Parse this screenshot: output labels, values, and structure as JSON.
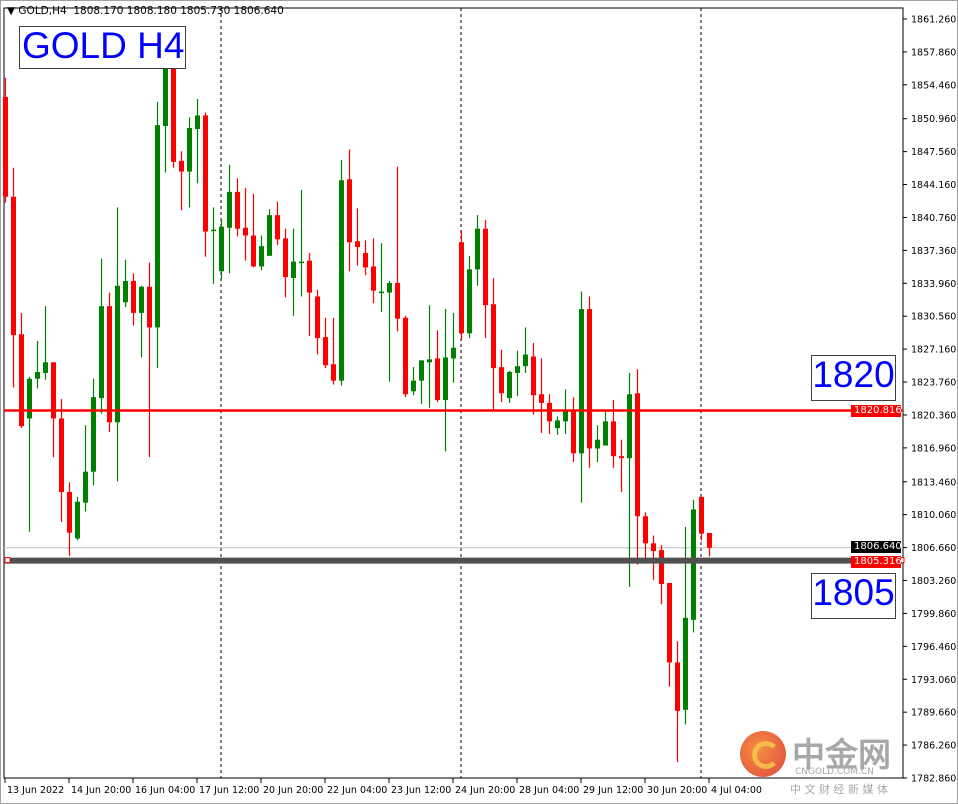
{
  "header": {
    "menu_icon": "triangle-down-icon",
    "symbol": "GOLD,H4",
    "ohlc": "1808.170 1808.180 1805.730 1806.640"
  },
  "title_label": "GOLD H4",
  "levels": {
    "upper": {
      "label": "1820",
      "price": 1820.816,
      "price_tag": "1820.816",
      "color": "#ff0000"
    },
    "lower": {
      "label": "1805",
      "price": 1805.316,
      "price_tag": "1805.316",
      "color": "#505050",
      "tag_color": "#ff0000"
    },
    "bid": {
      "price": 1806.64,
      "price_tag": "1806.640",
      "color": "#c0c0c0"
    }
  },
  "watermark": {
    "name": "中金网",
    "domain": "CNGOLD.COM.CN",
    "slogan": "中 文 财 经 新 媒 体"
  },
  "chart_data": {
    "type": "candlestick",
    "symbol": "GOLD",
    "timeframe": "H4",
    "up_color": "#008000",
    "down_color": "#ff0000",
    "ylim": [
      1782.86,
      1861.26
    ],
    "y_ticks": [
      "1861.260",
      "1857.860",
      "1854.460",
      "1850.960",
      "1847.560",
      "1844.160",
      "1840.760",
      "1837.360",
      "1833.960",
      "1830.560",
      "1827.160",
      "1823.760",
      "1820.360",
      "1816.960",
      "1813.460",
      "1810.060",
      "1806.660",
      "1803.260",
      "1799.860",
      "1796.460",
      "1793.060",
      "1789.660",
      "1786.260",
      "1782.860"
    ],
    "x_ticks": [
      "13 Jun 2022",
      "14 Jun 20:00",
      "16 Jun 04:00",
      "17 Jun 12:00",
      "20 Jun 20:00",
      "22 Jun 04:00",
      "23 Jun 12:00",
      "24 Jun 20:00",
      "28 Jun 04:00",
      "29 Jun 12:00",
      "30 Jun 20:00",
      "4 Jul 04:00"
    ],
    "period_separators": [
      "17 Jun",
      "24 Jun",
      "1 Jul"
    ],
    "ohlc": [
      [
        1853.2,
        1855.2,
        1842.3,
        1842.9
      ],
      [
        1842.9,
        1845.9,
        1823.2,
        1828.6
      ],
      [
        1828.7,
        1830.9,
        1819.0,
        1819.2
      ],
      [
        1820.0,
        1824.3,
        1808.3,
        1824.1
      ],
      [
        1824.1,
        1828.0,
        1823.1,
        1824.8
      ],
      [
        1824.7,
        1831.6,
        1824.0,
        1825.8
      ],
      [
        1825.8,
        1825.8,
        1816.0,
        1820.0
      ],
      [
        1820.0,
        1822.0,
        1809.3,
        1812.4
      ],
      [
        1812.4,
        1813.4,
        1805.8,
        1808.2
      ],
      [
        1807.6,
        1811.9,
        1807.4,
        1811.4
      ],
      [
        1811.3,
        1819.3,
        1810.4,
        1814.5
      ],
      [
        1814.5,
        1824.1,
        1813.1,
        1822.2
      ],
      [
        1822.1,
        1836.5,
        1820.5,
        1831.6
      ],
      [
        1831.6,
        1833.0,
        1818.6,
        1819.6
      ],
      [
        1819.6,
        1841.8,
        1813.5,
        1833.7
      ],
      [
        1832.0,
        1836.4,
        1831.5,
        1834.2
      ],
      [
        1834.2,
        1835.0,
        1829.6,
        1830.9
      ],
      [
        1830.9,
        1833.7,
        1826.3,
        1833.6
      ],
      [
        1833.6,
        1836.1,
        1816.0,
        1829.4
      ],
      [
        1829.4,
        1852.7,
        1825.2,
        1850.3
      ],
      [
        1850.2,
        1857.5,
        1845.4,
        1856.6
      ],
      [
        1856.4,
        1857.1,
        1845.9,
        1846.5
      ],
      [
        1846.6,
        1847.6,
        1841.5,
        1845.5
      ],
      [
        1845.5,
        1851.1,
        1841.8,
        1850.0
      ],
      [
        1849.9,
        1853.0,
        1844.3,
        1851.3
      ],
      [
        1851.3,
        1851.6,
        1836.7,
        1839.3
      ],
      [
        1839.5,
        1841.8,
        1833.9,
        1839.5
      ],
      [
        1835.2,
        1840.5,
        1834.4,
        1839.8
      ],
      [
        1839.7,
        1846.2,
        1835.0,
        1843.4
      ],
      [
        1843.4,
        1844.8,
        1838.8,
        1839.6
      ],
      [
        1839.7,
        1843.8,
        1836.3,
        1838.9
      ],
      [
        1838.9,
        1843.2,
        1835.6,
        1835.7
      ],
      [
        1835.7,
        1838.9,
        1835.3,
        1837.8
      ],
      [
        1836.8,
        1841.6,
        1836.8,
        1841.0
      ],
      [
        1841.0,
        1842.4,
        1837.9,
        1838.5
      ],
      [
        1838.6,
        1839.6,
        1832.5,
        1834.6
      ],
      [
        1834.5,
        1839.6,
        1830.6,
        1836.2
      ],
      [
        1836.2,
        1843.6,
        1832.6,
        1836.2
      ],
      [
        1836.3,
        1837.1,
        1828.5,
        1833.0
      ],
      [
        1832.6,
        1833.3,
        1826.6,
        1828.3
      ],
      [
        1828.4,
        1830.4,
        1825.2,
        1825.5
      ],
      [
        1825.6,
        1830.4,
        1823.5,
        1823.9
      ],
      [
        1823.9,
        1846.7,
        1823.4,
        1844.6
      ],
      [
        1844.7,
        1847.8,
        1835.2,
        1838.2
      ],
      [
        1838.3,
        1841.7,
        1835.8,
        1837.7
      ],
      [
        1837.1,
        1838.4,
        1834.8,
        1835.6
      ],
      [
        1835.7,
        1838.6,
        1831.9,
        1833.2
      ],
      [
        1833.1,
        1838.1,
        1831.0,
        1833.1
      ],
      [
        1833.0,
        1834.2,
        1823.8,
        1834.0
      ],
      [
        1834.0,
        1846.0,
        1829.0,
        1830.3
      ],
      [
        1830.4,
        1830.6,
        1822.2,
        1822.5
      ],
      [
        1822.8,
        1825.3,
        1822.4,
        1823.9
      ],
      [
        1823.9,
        1826.0,
        1821.5,
        1826.0
      ],
      [
        1825.8,
        1831.7,
        1821.1,
        1826.1
      ],
      [
        1826.2,
        1829.1,
        1821.7,
        1821.9
      ],
      [
        1821.9,
        1831.3,
        1816.6,
        1826.3
      ],
      [
        1826.2,
        1830.9,
        1823.7,
        1827.3
      ],
      [
        1838.2,
        1839.4,
        1828.1,
        1828.8
      ],
      [
        1828.8,
        1836.8,
        1828.3,
        1835.4
      ],
      [
        1835.4,
        1841.0,
        1833.7,
        1839.6
      ],
      [
        1839.6,
        1840.5,
        1828.3,
        1831.7
      ],
      [
        1831.8,
        1834.5,
        1820.9,
        1825.2
      ],
      [
        1825.3,
        1827.1,
        1821.7,
        1822.6
      ],
      [
        1822.1,
        1824.9,
        1821.6,
        1824.8
      ],
      [
        1824.7,
        1827.0,
        1822.3,
        1825.4
      ],
      [
        1825.4,
        1829.4,
        1824.7,
        1826.6
      ],
      [
        1826.4,
        1827.8,
        1820.4,
        1822.4
      ],
      [
        1822.5,
        1826.2,
        1818.5,
        1821.6
      ],
      [
        1821.6,
        1822.5,
        1818.4,
        1819.7
      ],
      [
        1819.0,
        1820.2,
        1818.3,
        1819.8
      ],
      [
        1819.7,
        1823.0,
        1818.4,
        1820.8
      ],
      [
        1820.8,
        1822.2,
        1815.5,
        1816.4
      ],
      [
        1816.4,
        1833.1,
        1811.3,
        1831.3
      ],
      [
        1831.3,
        1832.6,
        1814.9,
        1816.9
      ],
      [
        1816.9,
        1819.3,
        1815.5,
        1817.8
      ],
      [
        1817.2,
        1820.8,
        1817.2,
        1819.7
      ],
      [
        1819.7,
        1821.9,
        1814.9,
        1816.1
      ],
      [
        1816.1,
        1817.8,
        1812.4,
        1815.9
      ],
      [
        1815.9,
        1824.7,
        1802.6,
        1822.5
      ],
      [
        1822.6,
        1825.1,
        1804.9,
        1809.9
      ],
      [
        1809.9,
        1810.3,
        1805.4,
        1807.1
      ],
      [
        1807.1,
        1807.9,
        1803.3,
        1806.3
      ],
      [
        1806.4,
        1806.9,
        1800.8,
        1802.9
      ],
      [
        1803.0,
        1803.0,
        1792.3,
        1794.8
      ],
      [
        1794.8,
        1797.0,
        1784.5,
        1789.8
      ],
      [
        1789.9,
        1808.8,
        1788.4,
        1799.4
      ],
      [
        1799.2,
        1811.6,
        1797.9,
        1810.6
      ],
      [
        1811.9,
        1811.9,
        1807.4,
        1808.1
      ],
      [
        1808.17,
        1808.18,
        1805.73,
        1806.64
      ]
    ]
  }
}
